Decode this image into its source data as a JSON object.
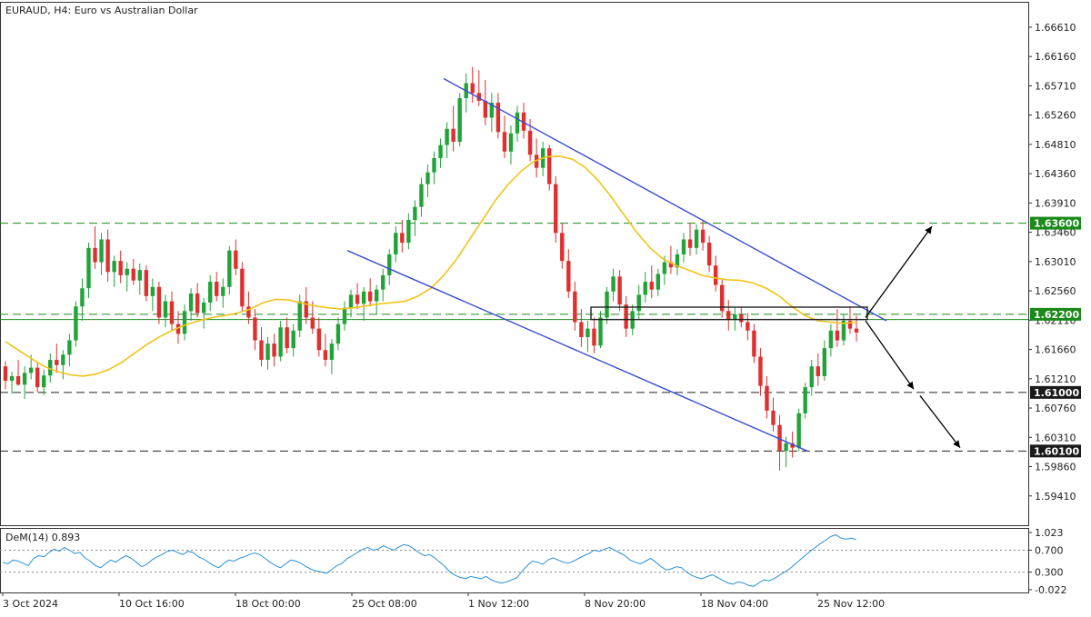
{
  "header": {
    "title": "EURAUD, H4:  Euro vs Australian Dollar"
  },
  "chart_data": {
    "type": "candlestick",
    "symbol": "EURAUD",
    "timeframe": "H4",
    "title": "EURAUD, H4:  Euro vs Australian Dollar",
    "ylim": [
      1.5896,
      1.67
    ],
    "y_ticks": [
      "1.66610",
      "1.66160",
      "1.65710",
      "1.65260",
      "1.64810",
      "1.64360",
      "1.63910",
      "1.63460",
      "1.63010",
      "1.62560",
      "1.62110",
      "1.61660",
      "1.61210",
      "1.60760",
      "1.60310",
      "1.59860",
      "1.59410"
    ],
    "x_ticks": [
      "3 Oct 2024",
      "10 Oct 16:00",
      "18 Oct 00:00",
      "25 Oct 08:00",
      "1 Nov 12:00",
      "8 Nov 20:00",
      "18 Nov 04:00",
      "25 Nov 12:00"
    ],
    "levels": [
      {
        "value": 1.636,
        "label": "1.63600",
        "bg": "#1b8a1b",
        "fg": "#ffffff"
      },
      {
        "value": 1.622,
        "label": "1.62200",
        "bg": "#1b8a1b",
        "fg": "#ffffff"
      },
      {
        "value": 1.61,
        "label": "1.61000",
        "bg": "#1a1a1a",
        "fg": "#ffffff"
      },
      {
        "value": 1.601,
        "label": "1.60100",
        "bg": "#1a1a1a",
        "fg": "#ffffff"
      }
    ],
    "moving_average_color": "#f0c419",
    "channel_color": "#3b4fd1",
    "bull_color": "#22a33a",
    "bear_color": "#e02f2f",
    "candles_ohlc": [
      [
        1.614,
        1.6148,
        1.6105,
        1.6118
      ],
      [
        1.6118,
        1.6132,
        1.6098,
        1.6125
      ],
      [
        1.6125,
        1.615,
        1.611,
        1.6112
      ],
      [
        1.6112,
        1.614,
        1.609,
        1.613
      ],
      [
        1.613,
        1.6158,
        1.612,
        1.6138
      ],
      [
        1.6138,
        1.6145,
        1.61,
        1.6108
      ],
      [
        1.6108,
        1.6135,
        1.6096,
        1.6126
      ],
      [
        1.6126,
        1.616,
        1.6115,
        1.615
      ],
      [
        1.615,
        1.6175,
        1.613,
        1.6142
      ],
      [
        1.6142,
        1.6165,
        1.612,
        1.6158
      ],
      [
        1.6158,
        1.619,
        1.614,
        1.618
      ],
      [
        1.618,
        1.624,
        1.617,
        1.6232
      ],
      [
        1.6232,
        1.6275,
        1.621,
        1.626
      ],
      [
        1.626,
        1.633,
        1.6245,
        1.6322
      ],
      [
        1.6322,
        1.6355,
        1.629,
        1.63
      ],
      [
        1.63,
        1.6345,
        1.628,
        1.6335
      ],
      [
        1.6335,
        1.635,
        1.627,
        1.6285
      ],
      [
        1.6285,
        1.631,
        1.6262,
        1.6302
      ],
      [
        1.6302,
        1.6318,
        1.6268,
        1.628
      ],
      [
        1.628,
        1.63,
        1.6255,
        1.629
      ],
      [
        1.629,
        1.6305,
        1.6265,
        1.6272
      ],
      [
        1.6272,
        1.6298,
        1.625,
        1.6288
      ],
      [
        1.6288,
        1.6295,
        1.624,
        1.6248
      ],
      [
        1.6248,
        1.6275,
        1.6225,
        1.6262
      ],
      [
        1.6262,
        1.627,
        1.6205,
        1.6215
      ],
      [
        1.6215,
        1.625,
        1.62,
        1.624
      ],
      [
        1.624,
        1.6255,
        1.6195,
        1.6205
      ],
      [
        1.6205,
        1.6225,
        1.6175,
        1.619
      ],
      [
        1.619,
        1.6235,
        1.618,
        1.6225
      ],
      [
        1.6225,
        1.626,
        1.621,
        1.6252
      ],
      [
        1.6252,
        1.6268,
        1.6215,
        1.6222
      ],
      [
        1.6222,
        1.6245,
        1.6198,
        1.6238
      ],
      [
        1.6238,
        1.628,
        1.6225,
        1.627
      ],
      [
        1.627,
        1.6285,
        1.624,
        1.6248
      ],
      [
        1.6248,
        1.6275,
        1.623,
        1.6262
      ],
      [
        1.6262,
        1.6325,
        1.625,
        1.6318
      ],
      [
        1.6318,
        1.6335,
        1.628,
        1.629
      ],
      [
        1.629,
        1.63,
        1.6225,
        1.6232
      ],
      [
        1.6232,
        1.6255,
        1.6205,
        1.6215
      ],
      [
        1.6215,
        1.6228,
        1.6165,
        1.618
      ],
      [
        1.618,
        1.62,
        1.614,
        1.615
      ],
      [
        1.615,
        1.6185,
        1.6135,
        1.6175
      ],
      [
        1.6175,
        1.619,
        1.614,
        1.6155
      ],
      [
        1.6155,
        1.621,
        1.6148,
        1.62
      ],
      [
        1.62,
        1.6215,
        1.616,
        1.6168
      ],
      [
        1.6168,
        1.6205,
        1.6155,
        1.6195
      ],
      [
        1.6195,
        1.625,
        1.6185,
        1.624
      ],
      [
        1.624,
        1.6262,
        1.6205,
        1.6215
      ],
      [
        1.6215,
        1.624,
        1.619,
        1.6198
      ],
      [
        1.6198,
        1.6215,
        1.6155,
        1.6165
      ],
      [
        1.6165,
        1.619,
        1.614,
        1.615
      ],
      [
        1.615,
        1.6182,
        1.6128,
        1.6175
      ],
      [
        1.6175,
        1.6215,
        1.6165,
        1.6205
      ],
      [
        1.6205,
        1.624,
        1.6195,
        1.623
      ],
      [
        1.623,
        1.6258,
        1.6215,
        1.625
      ],
      [
        1.625,
        1.6268,
        1.6228,
        1.6236
      ],
      [
        1.6236,
        1.6262,
        1.621,
        1.6255
      ],
      [
        1.6255,
        1.6275,
        1.6232,
        1.624
      ],
      [
        1.624,
        1.6265,
        1.622,
        1.6258
      ],
      [
        1.6258,
        1.629,
        1.624,
        1.628
      ],
      [
        1.628,
        1.632,
        1.6265,
        1.6312
      ],
      [
        1.6312,
        1.6355,
        1.63,
        1.6345
      ],
      [
        1.6345,
        1.6365,
        1.6315,
        1.633
      ],
      [
        1.633,
        1.6375,
        1.632,
        1.6365
      ],
      [
        1.6365,
        1.6395,
        1.634,
        1.6385
      ],
      [
        1.6385,
        1.643,
        1.637,
        1.642
      ],
      [
        1.642,
        1.645,
        1.64,
        1.6438
      ],
      [
        1.6438,
        1.647,
        1.642,
        1.646
      ],
      [
        1.646,
        1.649,
        1.6445,
        1.648
      ],
      [
        1.648,
        1.6515,
        1.646,
        1.6505
      ],
      [
        1.6505,
        1.654,
        1.647,
        1.6485
      ],
      [
        1.6485,
        1.656,
        1.6478,
        1.6552
      ],
      [
        1.6552,
        1.659,
        1.653,
        1.6575
      ],
      [
        1.6575,
        1.66,
        1.6545,
        1.656
      ],
      [
        1.656,
        1.6595,
        1.654,
        1.6548
      ],
      [
        1.6548,
        1.658,
        1.651,
        1.6522
      ],
      [
        1.6522,
        1.656,
        1.65,
        1.6545
      ],
      [
        1.6545,
        1.656,
        1.649,
        1.65
      ],
      [
        1.65,
        1.6525,
        1.646,
        1.647
      ],
      [
        1.647,
        1.651,
        1.645,
        1.6498
      ],
      [
        1.6498,
        1.654,
        1.6485,
        1.653
      ],
      [
        1.653,
        1.6545,
        1.649,
        1.6502
      ],
      [
        1.6502,
        1.652,
        1.6455,
        1.6465
      ],
      [
        1.6465,
        1.649,
        1.643,
        1.6445
      ],
      [
        1.6445,
        1.6485,
        1.6432,
        1.6475
      ],
      [
        1.6475,
        1.648,
        1.641,
        1.642
      ],
      [
        1.642,
        1.6432,
        1.633,
        1.6345
      ],
      [
        1.6345,
        1.636,
        1.629,
        1.6302
      ],
      [
        1.6302,
        1.632,
        1.6245,
        1.6255
      ],
      [
        1.6255,
        1.627,
        1.6195,
        1.6208
      ],
      [
        1.6208,
        1.6228,
        1.617,
        1.6185
      ],
      [
        1.6185,
        1.621,
        1.6162,
        1.6198
      ],
      [
        1.6198,
        1.6215,
        1.616,
        1.6172
      ],
      [
        1.6172,
        1.6225,
        1.6168,
        1.6215
      ],
      [
        1.6215,
        1.6262,
        1.6205,
        1.6255
      ],
      [
        1.6255,
        1.629,
        1.624,
        1.6278
      ],
      [
        1.6278,
        1.6288,
        1.6225,
        1.6235
      ],
      [
        1.6235,
        1.6248,
        1.6185,
        1.6198
      ],
      [
        1.6198,
        1.6235,
        1.6188,
        1.6225
      ],
      [
        1.6225,
        1.6265,
        1.6212,
        1.625
      ],
      [
        1.625,
        1.6285,
        1.6238,
        1.627
      ],
      [
        1.627,
        1.6295,
        1.6245,
        1.6258
      ],
      [
        1.6258,
        1.629,
        1.6248,
        1.6282
      ],
      [
        1.6282,
        1.631,
        1.6265,
        1.63
      ],
      [
        1.63,
        1.6325,
        1.6282,
        1.6292
      ],
      [
        1.6292,
        1.632,
        1.628,
        1.6312
      ],
      [
        1.6312,
        1.6345,
        1.63,
        1.6335
      ],
      [
        1.6335,
        1.636,
        1.631,
        1.6322
      ],
      [
        1.6322,
        1.6358,
        1.6312,
        1.635
      ],
      [
        1.635,
        1.6365,
        1.6318,
        1.633
      ],
      [
        1.633,
        1.634,
        1.6285,
        1.6295
      ],
      [
        1.6295,
        1.631,
        1.6255,
        1.6265
      ],
      [
        1.6265,
        1.6275,
        1.6215,
        1.6225
      ],
      [
        1.6225,
        1.6242,
        1.6195,
        1.6212
      ],
      [
        1.6212,
        1.623,
        1.6195,
        1.622
      ],
      [
        1.622,
        1.6232,
        1.62,
        1.6208
      ],
      [
        1.6208,
        1.6222,
        1.618,
        1.6195
      ],
      [
        1.6195,
        1.6205,
        1.6145,
        1.6155
      ],
      [
        1.6155,
        1.6168,
        1.6095,
        1.611
      ],
      [
        1.611,
        1.6125,
        1.606,
        1.6072
      ],
      [
        1.6072,
        1.6092,
        1.604,
        1.605
      ],
      [
        1.605,
        1.6065,
        1.598,
        1.601
      ],
      [
        1.601,
        1.6032,
        1.5985,
        1.6022
      ],
      [
        1.6022,
        1.604,
        1.6,
        1.6015
      ],
      [
        1.6015,
        1.6075,
        1.601,
        1.6068
      ],
      [
        1.6068,
        1.6115,
        1.606,
        1.6108
      ],
      [
        1.6108,
        1.615,
        1.6095,
        1.614
      ],
      [
        1.614,
        1.616,
        1.611,
        1.6125
      ],
      [
        1.6125,
        1.618,
        1.6118,
        1.6168
      ],
      [
        1.6168,
        1.6205,
        1.6155,
        1.6195
      ],
      [
        1.6195,
        1.6228,
        1.617,
        1.618
      ],
      [
        1.618,
        1.622,
        1.6172,
        1.621
      ],
      [
        1.621,
        1.6232,
        1.619,
        1.6198
      ],
      [
        1.6198,
        1.6218,
        1.6178,
        1.6192
      ]
    ],
    "ma_values": [
      1.6178,
      1.6165,
      1.6152,
      1.614,
      1.6132,
      1.6127,
      1.6125,
      1.6128,
      1.6135,
      1.6146,
      1.616,
      1.6174,
      1.6186,
      1.6196,
      1.6204,
      1.621,
      1.6215,
      1.6218,
      1.6222,
      1.6228,
      1.6238,
      1.6243,
      1.6242,
      1.6237,
      1.6233,
      1.623,
      1.6228,
      1.623,
      1.6233,
      1.6236,
      1.6238,
      1.624,
      1.6248,
      1.626,
      1.628,
      1.6305,
      1.6335,
      1.6365,
      1.6395,
      1.642,
      1.644,
      1.6455,
      1.6462,
      1.6463,
      1.6458,
      1.6445,
      1.6425,
      1.64,
      1.6372,
      1.6345,
      1.6322,
      1.6305,
      1.6295,
      1.6288,
      1.628,
      1.6276,
      1.6273,
      1.6272,
      1.6268,
      1.626,
      1.6248,
      1.6232,
      1.6218,
      1.621,
      1.6208,
      1.6206,
      1.6208
    ],
    "dem_label": "DeM(14) 0.893",
    "dem_ticks": [
      "1.023",
      "0.700",
      "0.300",
      "-0.022"
    ],
    "dem_levels": [
      0.7,
      0.3
    ],
    "dem_range": [
      -0.022,
      1.023
    ],
    "dem_values": [
      0.48,
      0.45,
      0.52,
      0.5,
      0.46,
      0.42,
      0.55,
      0.6,
      0.58,
      0.66,
      0.72,
      0.68,
      0.75,
      0.7,
      0.64,
      0.66,
      0.56,
      0.5,
      0.42,
      0.38,
      0.45,
      0.52,
      0.48,
      0.55,
      0.6,
      0.55,
      0.48,
      0.4,
      0.44,
      0.52,
      0.58,
      0.62,
      0.68,
      0.7,
      0.66,
      0.62,
      0.68,
      0.66,
      0.58,
      0.54,
      0.48,
      0.42,
      0.38,
      0.46,
      0.52,
      0.5,
      0.55,
      0.58,
      0.62,
      0.65,
      0.62,
      0.55,
      0.48,
      0.42,
      0.38,
      0.45,
      0.52,
      0.5,
      0.46,
      0.4,
      0.35,
      0.32,
      0.3,
      0.28,
      0.35,
      0.42,
      0.46,
      0.55,
      0.6,
      0.66,
      0.72,
      0.75,
      0.7,
      0.72,
      0.78,
      0.74,
      0.7,
      0.76,
      0.8,
      0.78,
      0.72,
      0.65,
      0.6,
      0.62,
      0.56,
      0.48,
      0.4,
      0.3,
      0.24,
      0.2,
      0.18,
      0.22,
      0.2,
      0.18,
      0.22,
      0.16,
      0.12,
      0.1,
      0.12,
      0.16,
      0.2,
      0.32,
      0.42,
      0.5,
      0.48,
      0.44,
      0.52,
      0.56,
      0.52,
      0.48,
      0.46,
      0.5,
      0.55,
      0.6,
      0.64,
      0.7,
      0.68,
      0.72,
      0.75,
      0.7,
      0.65,
      0.6,
      0.52,
      0.48,
      0.45,
      0.5,
      0.55,
      0.48,
      0.4,
      0.34,
      0.36,
      0.4,
      0.38,
      0.3,
      0.24,
      0.2,
      0.18,
      0.22,
      0.25,
      0.2,
      0.15,
      0.1,
      0.08,
      0.12,
      0.1,
      0.06,
      0.04,
      0.1,
      0.16,
      0.14,
      0.18,
      0.24,
      0.3,
      0.36,
      0.44,
      0.52,
      0.6,
      0.68,
      0.75,
      0.82,
      0.88,
      0.95,
      0.98,
      0.92,
      0.9,
      0.92,
      0.893
    ]
  }
}
